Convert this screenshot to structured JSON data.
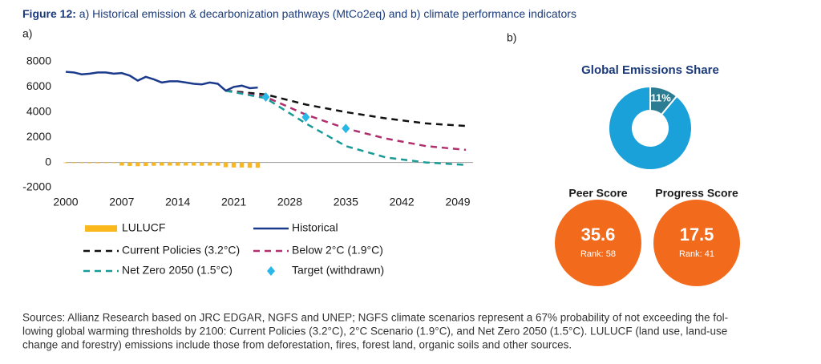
{
  "figure_title": {
    "label": "Figure 12:",
    "text": "a) Historical emission & decarbonization pathways (MtCo2eq) and b) climate performance indicators"
  },
  "panel_labels": [
    "a)",
    "b)"
  ],
  "chart_data": [
    {
      "type": "line",
      "xlim": [
        2000,
        2050
      ],
      "xticks": [
        2000,
        2007,
        2014,
        2021,
        2028,
        2035,
        2042,
        2049
      ],
      "ylim": [
        -2000,
        8000
      ],
      "yticks": [
        -2000,
        0,
        2000,
        4000,
        6000,
        8000
      ],
      "grid": false,
      "series": [
        {
          "name": "LULUCF",
          "kind": "bar",
          "color": "#fbb81c",
          "x": [
            2000,
            2001,
            2002,
            2003,
            2004,
            2005,
            2006,
            2007,
            2008,
            2009,
            2010,
            2011,
            2012,
            2013,
            2014,
            2015,
            2016,
            2017,
            2018,
            2019,
            2020,
            2021,
            2022,
            2023,
            2024
          ],
          "values": [
            -50,
            -50,
            -50,
            -60,
            -60,
            -50,
            -50,
            -250,
            -280,
            -300,
            -280,
            -260,
            -250,
            -250,
            -260,
            -250,
            -250,
            -260,
            -250,
            -260,
            -380,
            -400,
            -400,
            -420,
            -420
          ]
        },
        {
          "name": "Historical",
          "kind": "line",
          "color": "#1b3a8c",
          "x": [
            2000,
            2001,
            2002,
            2003,
            2004,
            2005,
            2006,
            2007,
            2008,
            2009,
            2010,
            2011,
            2012,
            2013,
            2014,
            2015,
            2016,
            2017,
            2018,
            2019,
            2020,
            2021,
            2022,
            2023,
            2024
          ],
          "values": [
            7200,
            7150,
            7000,
            7050,
            7150,
            7150,
            7050,
            7100,
            6900,
            6500,
            6800,
            6600,
            6350,
            6450,
            6450,
            6350,
            6250,
            6200,
            6350,
            6250,
            5700,
            6000,
            6100,
            5900,
            5950
          ]
        },
        {
          "name": "Current Policies (3.2°C)",
          "kind": "dashed",
          "color": "#111111",
          "x": [
            2020,
            2025,
            2030,
            2035,
            2040,
            2045,
            2050
          ],
          "values": [
            5700,
            5400,
            4600,
            4000,
            3500,
            3100,
            2900
          ]
        },
        {
          "name": "Below 2°C (1.9°C)",
          "kind": "dashed",
          "color": "#b0306e",
          "x": [
            2020,
            2025,
            2030,
            2035,
            2040,
            2045,
            2050
          ],
          "values": [
            5700,
            5200,
            3800,
            2700,
            1900,
            1300,
            1000
          ]
        },
        {
          "name": "Net Zero 2050 (1.5°C)",
          "kind": "dashed",
          "color": "#1a9a96",
          "x": [
            2020,
            2025,
            2030,
            2035,
            2040,
            2045,
            2050
          ],
          "values": [
            5700,
            5100,
            3100,
            1300,
            400,
            0,
            -200
          ]
        },
        {
          "name": "Target (withdrawn)",
          "kind": "marker",
          "color": "#2ab8e8",
          "x": [
            2025,
            2030,
            2035
          ],
          "values": [
            5200,
            3600,
            2700
          ]
        }
      ]
    },
    {
      "type": "pie",
      "title": "Global Emissions Share",
      "values": [
        11,
        89
      ],
      "value_labels": [
        "11%",
        null
      ],
      "colors": [
        "#2c7d93",
        "#1aa1d9"
      ]
    }
  ],
  "scores": [
    {
      "title": "Peer Score",
      "value": 35.6,
      "rank": "Rank: 58"
    },
    {
      "title": "Progress Score",
      "value": 17.5,
      "rank": "Rank: 41"
    }
  ],
  "score_color": "#f26b1d",
  "source_note": [
    "Sources: Allianz Research based on JRC EDGAR, NGFS and UNEP; NGFS climate scenarios represent a 67% probability of not exceeding the fol-",
    "lowing global warming thresholds by 2100: Current Policies (3.2°C), 2°C Scenario (1.9°C), and Net Zero 2050 (1.5°C). LULUCF (land use, land-use",
    "change and forestry) emissions include those from deforestation, fires, forest land, organic soils and other sources."
  ]
}
